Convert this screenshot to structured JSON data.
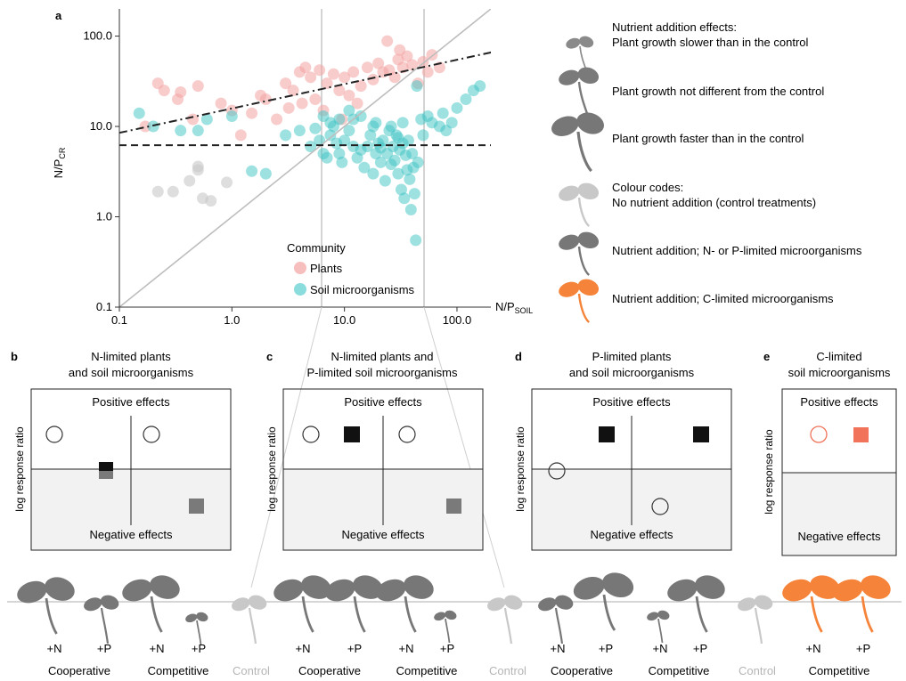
{
  "colors": {
    "plants": "#f4a3a3",
    "microbes": "#3ec4c4",
    "grey_dark": "#777777",
    "grey_light": "#c8c8c8",
    "orange": "#f5843a",
    "square_orange": "#f0735a",
    "square_grey": "#7a7a7a",
    "negative_bg": "#f2f2f2"
  },
  "panel_labels": {
    "a": "a",
    "b": "b",
    "c": "c",
    "d": "d",
    "e": "e"
  },
  "chart_data": {
    "type": "scatter",
    "title": "",
    "xlabel": "N/P",
    "xlabel_sub": "SOIL",
    "ylabel": "N/P",
    "ylabel_sub": "CR",
    "x_scale": "log",
    "y_scale": "log",
    "xlim": [
      0.1,
      200
    ],
    "ylim": [
      0.1,
      200
    ],
    "x_ticks": [
      "0.1",
      "1.0",
      "10.0",
      "100.0"
    ],
    "y_ticks": [
      "0.1",
      "1.0",
      "10.0",
      "100.0"
    ],
    "grid": false,
    "legend_title": "Community",
    "legend_position": "bottom-center",
    "vertical_lines_x": [
      6,
      50
    ],
    "lines": [
      {
        "kind": "identity",
        "style": "solid-grey"
      },
      {
        "kind": "plants-fit",
        "style": "dash-dot",
        "from": [
          0.1,
          8.5
        ],
        "to": [
          250,
          70
        ]
      },
      {
        "kind": "microbes-fit",
        "style": "dashed",
        "from": [
          0.1,
          6.2
        ],
        "to": [
          250,
          6.2
        ]
      }
    ],
    "series": [
      {
        "name": "Plants",
        "color": "#f4a3a3",
        "points": [
          [
            0.22,
            30
          ],
          [
            0.25,
            25
          ],
          [
            0.33,
            20
          ],
          [
            0.35,
            24
          ],
          [
            0.5,
            28
          ],
          [
            0.8,
            18
          ],
          [
            1.0,
            15
          ],
          [
            1.5,
            14
          ],
          [
            1.8,
            22
          ],
          [
            2.0,
            20
          ],
          [
            3.0,
            30
          ],
          [
            3.5,
            25
          ],
          [
            4.0,
            40
          ],
          [
            4.5,
            45
          ],
          [
            5.0,
            35
          ],
          [
            5.5,
            20
          ],
          [
            6.0,
            42
          ],
          [
            7.0,
            30
          ],
          [
            8.0,
            38
          ],
          [
            9.0,
            25
          ],
          [
            10,
            35
          ],
          [
            12,
            40
          ],
          [
            14,
            28
          ],
          [
            16,
            45
          ],
          [
            18,
            33
          ],
          [
            20,
            50
          ],
          [
            22,
            40
          ],
          [
            25,
            42
          ],
          [
            28,
            35
          ],
          [
            30,
            55
          ],
          [
            33,
            45
          ],
          [
            36,
            60
          ],
          [
            40,
            48
          ],
          [
            45,
            30
          ],
          [
            50,
            52
          ],
          [
            55,
            40
          ],
          [
            60,
            62
          ],
          [
            70,
            45
          ],
          [
            2.5,
            12
          ],
          [
            4.2,
            18
          ],
          [
            6.5,
            15
          ],
          [
            9.5,
            12
          ],
          [
            11,
            22
          ],
          [
            13,
            18
          ],
          [
            24,
            88
          ],
          [
            31,
            70
          ],
          [
            0.17,
            10
          ],
          [
            0.45,
            12
          ],
          [
            1.2,
            8
          ],
          [
            3.2,
            16
          ],
          [
            0.3,
            1.9
          ],
          [
            0.22,
            1.9
          ],
          [
            0.5,
            3.3
          ],
          [
            0.55,
            1.6
          ],
          [
            0.65,
            1.5
          ],
          [
            0.9,
            2.4
          ],
          [
            0.5,
            3.6
          ],
          [
            0.42,
            2.5
          ]
        ]
      },
      {
        "name": "Soil microorganisms",
        "color": "#3ec4c4",
        "points": [
          [
            0.15,
            14
          ],
          [
            0.2,
            10
          ],
          [
            0.35,
            9
          ],
          [
            0.5,
            9
          ],
          [
            0.6,
            12
          ],
          [
            1.0,
            13
          ],
          [
            1.5,
            3.2
          ],
          [
            2.0,
            3.0
          ],
          [
            3.0,
            8
          ],
          [
            4.0,
            9
          ],
          [
            5.0,
            6
          ],
          [
            5.5,
            9.5
          ],
          [
            6.0,
            7
          ],
          [
            6.5,
            5
          ],
          [
            7.0,
            4.5
          ],
          [
            7.5,
            8
          ],
          [
            8.0,
            10
          ],
          [
            8.5,
            6.5
          ],
          [
            9.0,
            5
          ],
          [
            9.5,
            4
          ],
          [
            10,
            7
          ],
          [
            11,
            9
          ],
          [
            12,
            6
          ],
          [
            13,
            4.5
          ],
          [
            14,
            5.5
          ],
          [
            15,
            3.5
          ],
          [
            16,
            6
          ],
          [
            17,
            8
          ],
          [
            18,
            3
          ],
          [
            19,
            5
          ],
          [
            20,
            6.5
          ],
          [
            21,
            4
          ],
          [
            22,
            7
          ],
          [
            23,
            2.5
          ],
          [
            24,
            5
          ],
          [
            25,
            9
          ],
          [
            26,
            3.8
          ],
          [
            27,
            6
          ],
          [
            28,
            4.2
          ],
          [
            29,
            8
          ],
          [
            30,
            3
          ],
          [
            31,
            5.5
          ],
          [
            32,
            2
          ],
          [
            33,
            6.5
          ],
          [
            34,
            1.6
          ],
          [
            35,
            4.8
          ],
          [
            36,
            3.3
          ],
          [
            37,
            7
          ],
          [
            38,
            2.6
          ],
          [
            39,
            1.2
          ],
          [
            40,
            5
          ],
          [
            41,
            3.5
          ],
          [
            42,
            1.8
          ],
          [
            43,
            0.55
          ],
          [
            45,
            4
          ],
          [
            48,
            12
          ],
          [
            50,
            8
          ],
          [
            55,
            13
          ],
          [
            60,
            11
          ],
          [
            70,
            10
          ],
          [
            75,
            14
          ],
          [
            80,
            9
          ],
          [
            90,
            11
          ],
          [
            100,
            16
          ],
          [
            120,
            20
          ],
          [
            140,
            25
          ],
          [
            160,
            28
          ],
          [
            11,
            15
          ],
          [
            14,
            13
          ],
          [
            19,
            11
          ],
          [
            9,
            12
          ],
          [
            7.5,
            11
          ],
          [
            6.5,
            13
          ],
          [
            44,
            28
          ],
          [
            33,
            11
          ],
          [
            26,
            10
          ],
          [
            18,
            10
          ],
          [
            12,
            12
          ],
          [
            30,
            7.5
          ],
          [
            21,
            5.8
          ]
        ]
      }
    ]
  },
  "legend_right": {
    "effects_heading": "Nutrient addition effects:",
    "slower": "Plant growth slower than in the control",
    "same": "Plant growth not different from the control",
    "faster": "Plant growth faster than in the control",
    "colour_heading": "Colour codes:",
    "control": "No nutrient addition (control treatments)",
    "np_limited": "Nutrient addition; N- or P-limited microorganisms",
    "c_limited": "Nutrient addition; C-limited microorganisms"
  },
  "panels": {
    "b": {
      "title1": "N-limited plants",
      "title2": "and soil microorganisms"
    },
    "c": {
      "title1": "N-limited plants and",
      "title2": "P-limited soil microorganisms"
    },
    "d": {
      "title1": "P-limited plants",
      "title2": "and soil microorganisms"
    },
    "e": {
      "title1": "C-limited",
      "title2": "soil microorganisms"
    }
  },
  "box_text": {
    "positive": "Positive effects",
    "negative": "Negative effects",
    "y_axis": "log response ratio"
  },
  "bottom": {
    "plus_n": "+N",
    "plus_p": "+P",
    "cooperative": "Cooperative",
    "competitive": "Competitive",
    "control": "Control"
  }
}
